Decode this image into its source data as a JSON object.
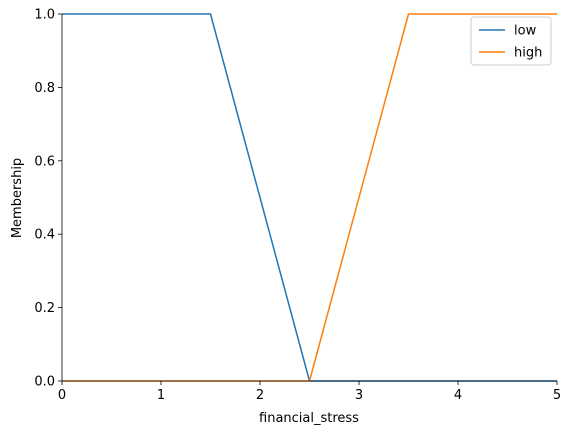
{
  "chart_data": {
    "type": "line",
    "xlabel": "financial_stress",
    "ylabel": "Membership",
    "xlim": [
      0,
      5
    ],
    "ylim": [
      0,
      1.0
    ],
    "x_ticks": [
      0,
      1,
      2,
      3,
      4,
      5
    ],
    "y_ticks": [
      0.0,
      0.2,
      0.4,
      0.6,
      0.8,
      1.0
    ],
    "x_tick_labels": [
      "0",
      "1",
      "2",
      "3",
      "4",
      "5"
    ],
    "y_tick_labels": [
      "0.0",
      "0.2",
      "0.4",
      "0.6",
      "0.8",
      "1.0"
    ],
    "legend_position": "top-right",
    "grid": false,
    "series": [
      {
        "name": "low",
        "color": "#1f77b4",
        "x": [
          0,
          1.5,
          2.5,
          5
        ],
        "y": [
          1,
          1,
          0,
          0
        ]
      },
      {
        "name": "high",
        "color": "#ff7f0e",
        "x": [
          0,
          2.5,
          3.5,
          5
        ],
        "y": [
          0,
          0,
          1,
          1
        ]
      }
    ]
  }
}
